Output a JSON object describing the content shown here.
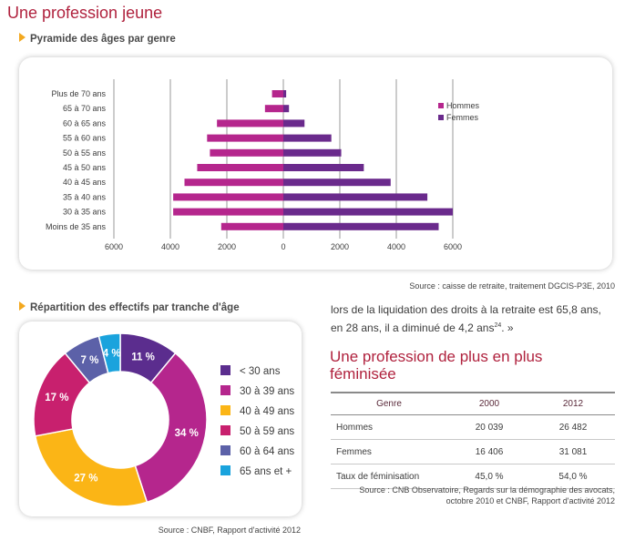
{
  "page_title": "Une profession jeune",
  "pyramid": {
    "heading": "Pyramide des âges par genre",
    "source": "Source : caisse de retraite, traitement DGCIS-P3E, 2010"
  },
  "donut": {
    "heading": "Répartition des effectifs par tranche d'âge",
    "source": "Source : CNBF, Rapport d'activité 2012"
  },
  "quote_text": {
    "line1": "lors de la liquidation des droits à la retraite est 65,8 ans,",
    "line2": "en 28 ans, il a diminué de 4,2 ans",
    "sup": "24",
    "line2_end": ". »"
  },
  "feminisation": {
    "title_line1": "Une profession de plus en plus",
    "title_line2": "féminisée",
    "headers": [
      "Genre",
      "2000",
      "2012"
    ],
    "rows": [
      [
        "Hommes",
        "20 039",
        "26 482"
      ],
      [
        "Femmes",
        "16 406",
        "31 081"
      ],
      [
        "Taux de féminisation",
        "45,0 %",
        "54,0 %"
      ]
    ],
    "source_line1": "Source : CNB Observatoire, Regards sur la démographie des avocats,",
    "source_line2": "octobre 2010 et CNBF, Rapport d'activité 2012"
  },
  "chart_data": [
    {
      "type": "bar",
      "orientation": "horizontal-pyramid",
      "categories": [
        "Plus de 70 ans",
        "65 à 70 ans",
        "60 à 65 ans",
        "55 à 60 ans",
        "50 à 55 ans",
        "45 à 50 ans",
        "40 à 45 ans",
        "35 à 40 ans",
        "30 à 35 ans",
        "Moins de 35 ans"
      ],
      "series": [
        {
          "name": "Hommes",
          "color": "#b5268d",
          "values": [
            400,
            650,
            2350,
            2700,
            2600,
            3050,
            3500,
            3900,
            3900,
            2200
          ]
        },
        {
          "name": "Femmes",
          "color": "#6a2a8c",
          "values": [
            100,
            200,
            750,
            1700,
            2050,
            2850,
            3800,
            5100,
            6000,
            5500
          ]
        }
      ],
      "xticks": [
        "6000",
        "4000",
        "2000",
        "0",
        "2000",
        "4000",
        "6000"
      ],
      "xlim": [
        -6000,
        6000
      ],
      "grid": true,
      "legend": "top-right"
    },
    {
      "type": "pie",
      "style": "donut",
      "start": "top",
      "slices": [
        {
          "label": "< 30 ans",
          "value": 11,
          "display": "11 %",
          "color": "#5b2d8e"
        },
        {
          "label": "30 à 39 ans",
          "value": 34,
          "display": "34 %",
          "color": "#b5268d"
        },
        {
          "label": "40 à 49 ans",
          "value": 27,
          "display": "27 %",
          "color": "#fbb516"
        },
        {
          "label": "50 à 59 ans",
          "value": 17,
          "display": "17 %",
          "color": "#c8206e"
        },
        {
          "label": "60 à 64 ans",
          "value": 7,
          "display": "7 %",
          "color": "#5c61a8"
        },
        {
          "label": "65 ans et +",
          "value": 4,
          "display": "4 %",
          "color": "#1aa3dd"
        }
      ],
      "legend": "right"
    }
  ]
}
